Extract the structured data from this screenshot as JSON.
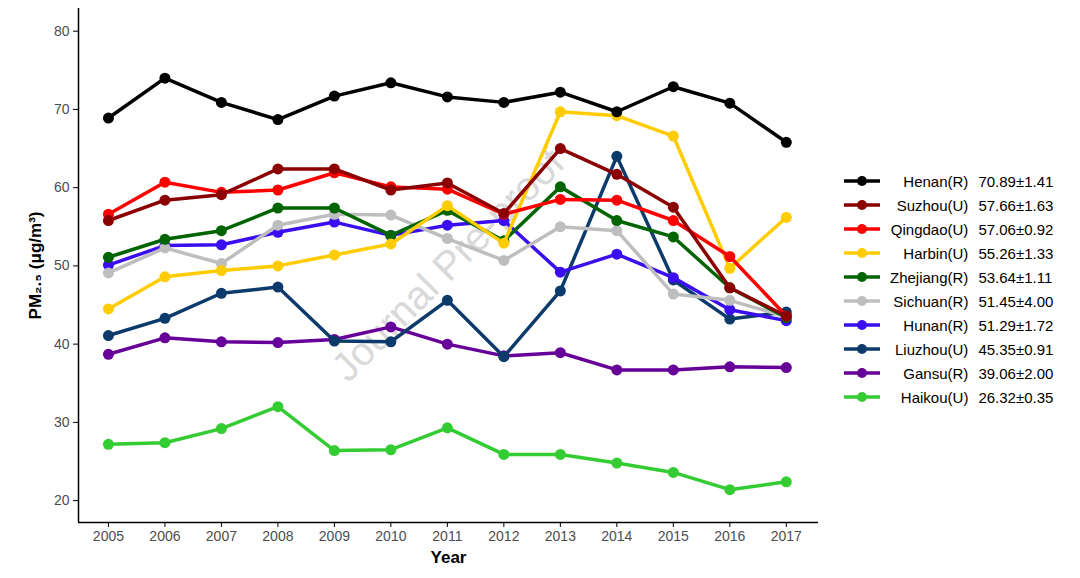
{
  "chart_data": {
    "type": "line",
    "xlabel": "Year",
    "ylabel": "PM₂.₅ (μg/m³)",
    "annotations": [
      "Journal Pre-proof"
    ],
    "x": [
      2005,
      2006,
      2007,
      2008,
      2009,
      2010,
      2011,
      2012,
      2013,
      2014,
      2015,
      2016,
      2017
    ],
    "xlim": [
      2004.47,
      2017.57
    ],
    "xticks": [
      2005,
      2006,
      2007,
      2008,
      2009,
      2010,
      2011,
      2012,
      2013,
      2014,
      2015,
      2016,
      2017
    ],
    "ylim": [
      17.2,
      82.9
    ],
    "yticks": [
      20,
      30,
      40,
      50,
      60,
      70,
      80
    ],
    "grid": false,
    "legend": "right",
    "marker": "circle",
    "series": [
      {
        "name": "Henan(R)",
        "stats": "70.89±1.41",
        "color": "#000000",
        "values": [
          68.9,
          74.0,
          70.9,
          68.7,
          71.7,
          73.4,
          71.6,
          70.9,
          72.2,
          69.7,
          72.9,
          70.8,
          65.8
        ]
      },
      {
        "name": "Suzhou(U)",
        "stats": "57.66±1.63",
        "color": "#8b0000",
        "values": [
          55.8,
          58.4,
          59.1,
          62.4,
          62.4,
          59.7,
          60.6,
          56.7,
          65.0,
          61.7,
          57.5,
          47.2,
          43.6
        ]
      },
      {
        "name": "Qingdao(U)",
        "stats": "57.06±0.92",
        "color": "#ff0000",
        "values": [
          56.6,
          60.7,
          59.4,
          59.7,
          61.9,
          60.1,
          59.8,
          56.6,
          58.5,
          58.4,
          55.8,
          51.2,
          43.6
        ]
      },
      {
        "name": "Harbin(U)",
        "stats": "55.26±1.33",
        "color": "#ffcc00",
        "values": [
          44.5,
          48.6,
          49.4,
          50.0,
          51.4,
          52.8,
          57.7,
          52.9,
          69.7,
          69.2,
          66.6,
          49.7,
          56.2
        ]
      },
      {
        "name": "Zhejiang(R)",
        "stats": "53.64±1.11",
        "color": "#006400",
        "values": [
          51.1,
          53.4,
          54.5,
          57.4,
          57.4,
          53.9,
          57.1,
          53.2,
          60.1,
          55.8,
          53.7,
          47.2,
          43.4
        ]
      },
      {
        "name": "Sichuan(R)",
        "stats": "51.45±4.00",
        "color": "#bebebe",
        "values": [
          49.1,
          52.3,
          50.3,
          55.2,
          56.6,
          56.5,
          53.5,
          50.7,
          55.0,
          54.5,
          46.4,
          45.6,
          43.5
        ]
      },
      {
        "name": "Hunan(R)",
        "stats": "51.29±1.72",
        "color": "#3a0ef0",
        "values": [
          50.1,
          52.6,
          52.7,
          54.3,
          55.6,
          53.9,
          55.2,
          55.8,
          49.2,
          51.5,
          48.5,
          44.4,
          43.0
        ]
      },
      {
        "name": "Liuzhou(U)",
        "stats": "45.35±0.91",
        "color": "#0b3a6b",
        "values": [
          41.1,
          43.3,
          46.5,
          47.3,
          40.4,
          40.3,
          45.6,
          38.4,
          46.8,
          64.0,
          48.2,
          43.2,
          44.1
        ]
      },
      {
        "name": "Gansu(R)",
        "stats": "39.06±2.00",
        "color": "#660099",
        "values": [
          38.7,
          40.8,
          40.3,
          40.2,
          40.6,
          42.2,
          40.0,
          38.5,
          38.9,
          36.7,
          36.7,
          37.1,
          37.0
        ]
      },
      {
        "name": "Haikou(U)",
        "stats": "26.32±0.35",
        "color": "#33cc33",
        "values": [
          27.2,
          27.4,
          29.2,
          32.0,
          26.4,
          26.5,
          29.3,
          25.9,
          25.9,
          24.8,
          23.6,
          21.4,
          22.4
        ]
      }
    ]
  }
}
